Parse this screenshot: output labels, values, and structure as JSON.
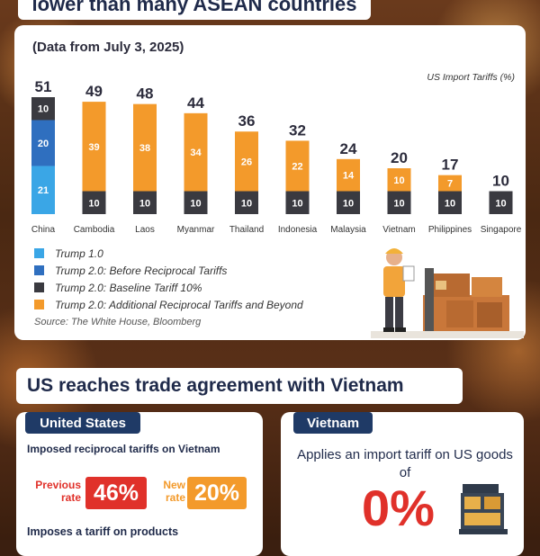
{
  "headline": "lower than many ASEAN countries",
  "data_note": "(Data from July 3, 2025)",
  "chart_data": {
    "type": "bar",
    "stacked": true,
    "title": "US Import Tariffs (%)",
    "categories": [
      "China",
      "Cambodia",
      "Laos",
      "Myanmar",
      "Thailand",
      "Indonesia",
      "Malaysia",
      "Vietnam",
      "Philippines",
      "Singapore"
    ],
    "series": [
      {
        "name": "Trump 1.0",
        "color": "#3aa6e6",
        "values": [
          21,
          0,
          0,
          0,
          0,
          0,
          0,
          0,
          0,
          0
        ]
      },
      {
        "name": "Trump 2.0: Before Reciprocal Tariffs",
        "color": "#2f6fbf",
        "values": [
          20,
          0,
          0,
          0,
          0,
          0,
          0,
          0,
          0,
          0
        ]
      },
      {
        "name": "Trump 2.0: Baseline Tariff 10%",
        "color": "#3a3a40",
        "values": [
          10,
          10,
          10,
          10,
          10,
          10,
          10,
          10,
          10,
          10
        ]
      },
      {
        "name": "Trump 2.0: Additional Reciprocal Tariffs and Beyond",
        "color": "#f39a2b",
        "values": [
          0,
          39,
          38,
          34,
          26,
          22,
          14,
          10,
          7,
          0
        ]
      }
    ],
    "totals": [
      51,
      49,
      48,
      44,
      36,
      32,
      24,
      20,
      17,
      10
    ],
    "ylim": [
      0,
      51
    ]
  },
  "source": "Source: The White House, Bloomberg",
  "section_title": "US reaches trade agreement with Vietnam",
  "us": {
    "tab": "United States",
    "subtitle": "Imposed reciprocal tariffs on Vietnam",
    "previous_label": "Previous rate",
    "previous_value": "46%",
    "new_label": "New rate",
    "new_value": "20%",
    "more": "Imposes a tariff on products"
  },
  "vn": {
    "tab": "Vietnam",
    "subtitle": "Applies an import tariff on US goods of",
    "value": "0%"
  }
}
